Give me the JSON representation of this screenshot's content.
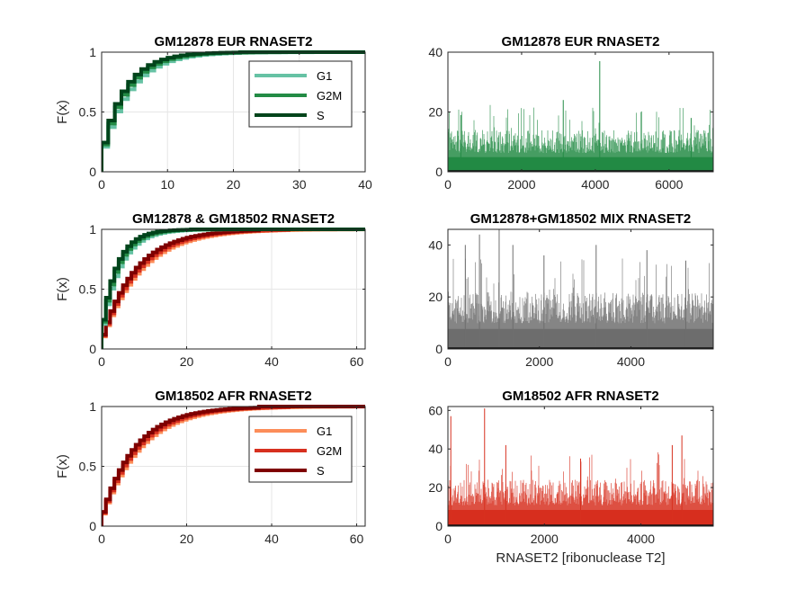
{
  "chart_data": [
    {
      "type": "line",
      "subtype": "ecdf",
      "title": "GM12878 EUR RNASET2",
      "xlabel": "",
      "ylabel": "F(x)",
      "xlim": [
        0,
        40
      ],
      "ylim": [
        0,
        1
      ],
      "xticks": [
        0,
        10,
        20,
        30,
        40
      ],
      "yticks": [
        0,
        0.5,
        1
      ],
      "grid": true,
      "legend": {
        "position": "inside-right",
        "entries": [
          "G1",
          "G2M",
          "S"
        ]
      },
      "series": [
        {
          "name": "G1",
          "color": "#66c2a4",
          "max_x": 37,
          "mean": 3.8
        },
        {
          "name": "G2M",
          "color": "#238b45",
          "max_x": 27,
          "mean": 3.4
        },
        {
          "name": "S",
          "color": "#00441b",
          "max_x": 21,
          "mean": 3.1
        }
      ]
    },
    {
      "type": "bar",
      "title": "GM12878 EUR RNASET2",
      "xlabel": "",
      "ylabel": "",
      "xlim": [
        0,
        7200
      ],
      "ylim": [
        0,
        40
      ],
      "xticks": [
        0,
        2000,
        4000,
        6000
      ],
      "yticks": [
        0,
        20,
        40
      ],
      "n_cells": 7200,
      "color": "#238b45",
      "typical_max": 14,
      "peaks": [
        [
          350,
          19
        ],
        [
          3130,
          24
        ],
        [
          4120,
          37
        ],
        [
          6600,
          18
        ]
      ]
    },
    {
      "type": "line",
      "subtype": "ecdf",
      "title": "GM12878 & GM18502 RNASET2",
      "xlabel": "",
      "ylabel": "F(x)",
      "xlim": [
        0,
        62
      ],
      "ylim": [
        0,
        1
      ],
      "xticks": [
        0,
        20,
        40,
        60
      ],
      "yticks": [
        0,
        0.5,
        1
      ],
      "grid": true,
      "series": [
        {
          "name": "G1",
          "color": "#fc8d59",
          "max_x": 62,
          "mean": 8.6
        },
        {
          "name": "G2M",
          "color": "#d7301f",
          "max_x": 44,
          "mean": 8.0
        },
        {
          "name": "S",
          "color": "#7f0000",
          "max_x": 37,
          "mean": 7.4
        },
        {
          "name": "G1",
          "color": "#66c2a4",
          "max_x": 37,
          "mean": 3.8
        },
        {
          "name": "G2M",
          "color": "#238b45",
          "max_x": 27,
          "mean": 3.4
        },
        {
          "name": "S",
          "color": "#00441b",
          "max_x": 21,
          "mean": 3.1
        }
      ]
    },
    {
      "type": "bar",
      "title": "GM12878+GM18502 MIX RNASET2",
      "xlabel": "",
      "ylabel": "",
      "xlim": [
        0,
        5800
      ],
      "ylim": [
        0,
        46
      ],
      "xticks": [
        0,
        2000,
        4000
      ],
      "yticks": [
        0,
        20,
        40
      ],
      "n_cells": 5800,
      "color": "#6e6e6e",
      "typical_max": 22,
      "peaks": [
        [
          380,
          40
        ],
        [
          690,
          44
        ],
        [
          1120,
          46
        ],
        [
          1420,
          40
        ],
        [
          2100,
          36
        ],
        [
          3240,
          40
        ],
        [
          4350,
          38
        ],
        [
          5200,
          34
        ]
      ]
    },
    {
      "type": "line",
      "subtype": "ecdf",
      "title": "GM18502 AFR RNASET2",
      "xlabel": "",
      "ylabel": "F(x)",
      "xlim": [
        0,
        62
      ],
      "ylim": [
        0,
        1
      ],
      "xticks": [
        0,
        20,
        40,
        60
      ],
      "yticks": [
        0,
        0.5,
        1
      ],
      "grid": true,
      "legend": {
        "position": "inside-right",
        "entries": [
          "G1",
          "G2M",
          "S"
        ]
      },
      "series": [
        {
          "name": "G1",
          "color": "#fc8d59",
          "max_x": 62,
          "mean": 8.6
        },
        {
          "name": "G2M",
          "color": "#d7301f",
          "max_x": 44,
          "mean": 8.0
        },
        {
          "name": "S",
          "color": "#7f0000",
          "max_x": 37,
          "mean": 7.4
        }
      ]
    },
    {
      "type": "bar",
      "title": "GM18502 AFR RNASET2",
      "xlabel": "RNASET2 [ribonuclease T2]",
      "ylabel": "",
      "xlim": [
        0,
        5500
      ],
      "ylim": [
        0,
        62
      ],
      "xticks": [
        0,
        2000,
        4000
      ],
      "yticks": [
        0,
        20,
        40,
        60
      ],
      "n_cells": 5500,
      "color": "#d7301f",
      "typical_max": 24,
      "peaks": [
        [
          60,
          57
        ],
        [
          760,
          61
        ],
        [
          1200,
          42
        ],
        [
          4850,
          47
        ],
        [
          4650,
          42
        ],
        [
          2750,
          35
        ]
      ]
    }
  ]
}
